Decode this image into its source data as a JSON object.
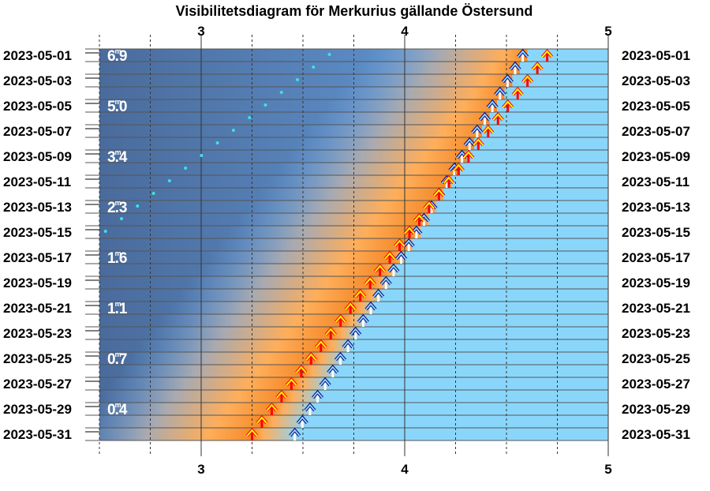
{
  "chart_data": {
    "type": "visibility-diagram",
    "title": "Visibilitetsdiagram för Merkurius gällande Östersund",
    "x_axis": {
      "range": [
        2.5,
        5.0
      ],
      "major_ticks": [
        3,
        4,
        5
      ],
      "tick_labels": [
        "3",
        "4",
        "5"
      ],
      "dashed_gridlines": [
        2.5,
        2.75,
        3.25,
        3.5,
        3.75,
        4.25,
        4.5,
        4.75
      ]
    },
    "dates": [
      "2023-05-01",
      "2023-05-03",
      "2023-05-05",
      "2023-05-07",
      "2023-05-09",
      "2023-05-11",
      "2023-05-13",
      "2023-05-15",
      "2023-05-17",
      "2023-05-19",
      "2023-05-21",
      "2023-05-23",
      "2023-05-25",
      "2023-05-27",
      "2023-05-29",
      "2023-05-31"
    ],
    "day_count": 31,
    "magnitude_labels": [
      {
        "day": 1,
        "text": "6.9"
      },
      {
        "day": 5,
        "text": "5.0"
      },
      {
        "day": 9,
        "text": "3.4"
      },
      {
        "day": 13,
        "text": "2.3"
      },
      {
        "day": 17,
        "text": "1.6"
      },
      {
        "day": 21,
        "text": "1.1"
      },
      {
        "day": 25,
        "text": "0.7"
      },
      {
        "day": 29,
        "text": "0.4"
      }
    ],
    "magnitude_superscript": "m",
    "series": [
      {
        "key": "rise",
        "color": "#ff0000",
        "start": [
          1,
          4.7
        ],
        "end": [
          31,
          3.25
        ],
        "step_days": 1
      },
      {
        "key": "sunrise",
        "color": "#ffffff",
        "start": [
          1,
          4.58
        ],
        "end": [
          31,
          3.46
        ],
        "step_days": 1
      },
      {
        "key": "dots",
        "color": "#40e0e0",
        "start": [
          1,
          3.63
        ],
        "end": [
          15,
          2.53
        ],
        "step_days": 1
      }
    ],
    "colors": {
      "night_dark": "#4a6b9c",
      "night_light": "#6aa6e6",
      "twilight_grey": "#a9aab0",
      "twilight_orange": "#ffae5a",
      "deep_orange": "#f58a2a",
      "day": "#8ad6fb",
      "arrow_outline": "#000080",
      "arrow_head": "#ffff00",
      "grid_line": "#555555"
    }
  }
}
